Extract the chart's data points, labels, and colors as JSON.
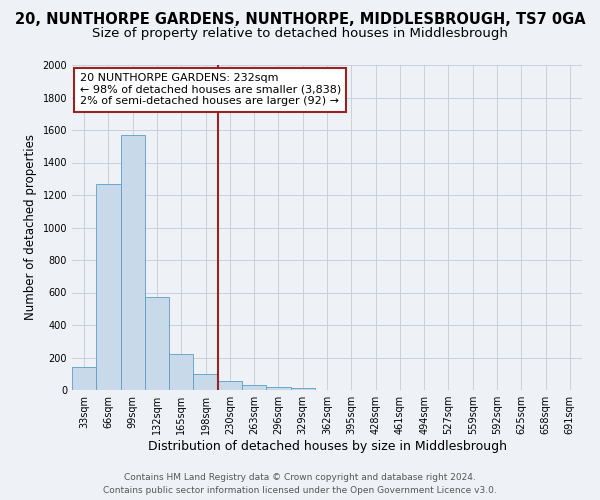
{
  "title": "20, NUNTHORPE GARDENS, NUNTHORPE, MIDDLESBROUGH, TS7 0GA",
  "subtitle": "Size of property relative to detached houses in Middlesbrough",
  "xlabel": "Distribution of detached houses by size in Middlesbrough",
  "ylabel": "Number of detached properties",
  "bar_color": "#c8d9ea",
  "bar_edge_color": "#5b9dc9",
  "grid_color": "#c8d0dc",
  "background_color": "#eef2f7",
  "categories": [
    "33sqm",
    "66sqm",
    "99sqm",
    "132sqm",
    "165sqm",
    "198sqm",
    "230sqm",
    "263sqm",
    "296sqm",
    "329sqm",
    "362sqm",
    "395sqm",
    "428sqm",
    "461sqm",
    "494sqm",
    "527sqm",
    "559sqm",
    "592sqm",
    "625sqm",
    "658sqm",
    "691sqm"
  ],
  "values": [
    140,
    1270,
    1570,
    570,
    220,
    100,
    55,
    30,
    20,
    15,
    0,
    0,
    0,
    0,
    0,
    0,
    0,
    0,
    0,
    0,
    0
  ],
  "ylim": [
    0,
    2000
  ],
  "yticks": [
    0,
    200,
    400,
    600,
    800,
    1000,
    1200,
    1400,
    1600,
    1800,
    2000
  ],
  "vline_index": 6,
  "vline_color": "#992222",
  "annotation_title": "20 NUNTHORPE GARDENS: 232sqm",
  "annotation_line1": "← 98% of detached houses are smaller (3,838)",
  "annotation_line2": "2% of semi-detached houses are larger (92) →",
  "annotation_box_color": "#992222",
  "annotation_bg": "#ffffff",
  "footer_line1": "Contains HM Land Registry data © Crown copyright and database right 2024.",
  "footer_line2": "Contains public sector information licensed under the Open Government Licence v3.0.",
  "title_fontsize": 10.5,
  "subtitle_fontsize": 9.5,
  "xlabel_fontsize": 9,
  "ylabel_fontsize": 8.5,
  "tick_fontsize": 7,
  "annotation_fontsize": 8,
  "footer_fontsize": 6.5
}
